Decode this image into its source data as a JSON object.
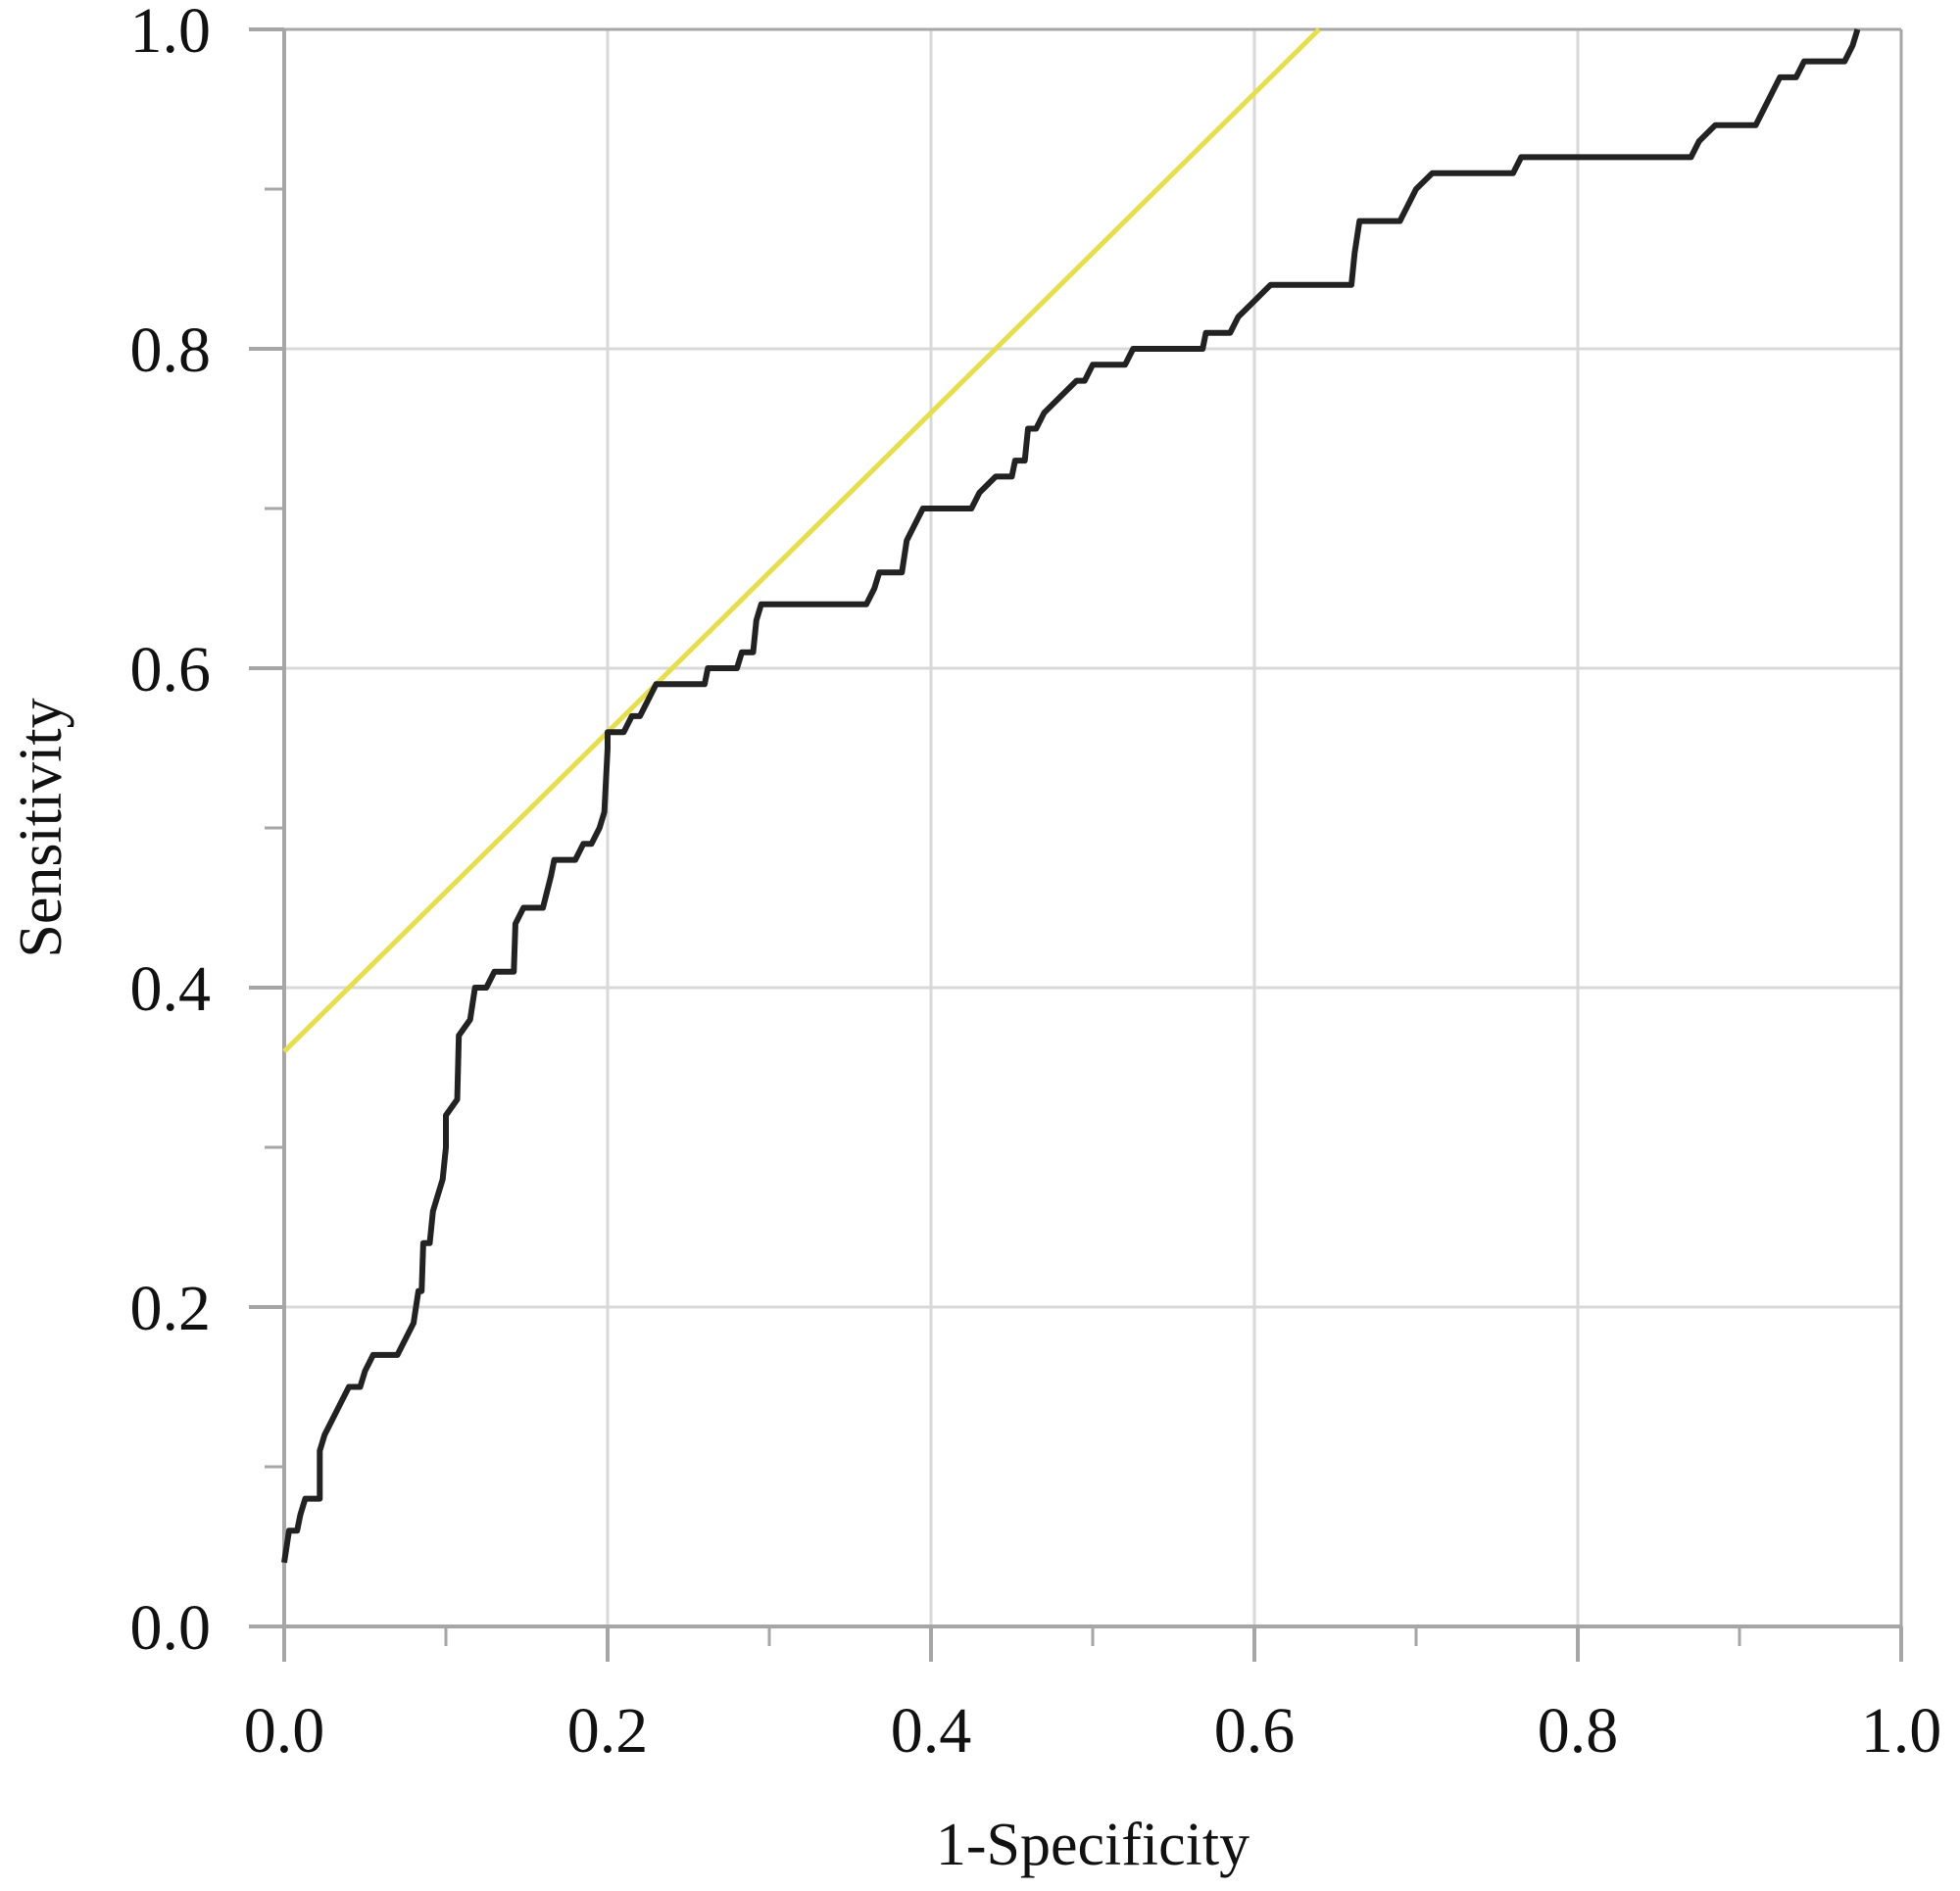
{
  "chart_data": {
    "type": "line",
    "title": "",
    "xlabel": "1-Specificity",
    "ylabel": "Sensitivity",
    "xlim": [
      0,
      1
    ],
    "ylim": [
      0,
      1
    ],
    "x_ticks": [
      "0.0",
      "0.2",
      "0.4",
      "0.6",
      "0.8",
      "1.0"
    ],
    "y_ticks": [
      "0.0",
      "0.2",
      "0.4",
      "0.6",
      "0.8",
      "1.0"
    ],
    "x_tick_values": [
      0,
      0.2,
      0.4,
      0.6,
      0.8,
      1.0
    ],
    "y_tick_values": [
      0,
      0.2,
      0.4,
      0.6,
      0.8,
      1.0
    ],
    "minor_tick_step": 0.1,
    "grid": true,
    "legend": "none",
    "colors": {
      "roc": "#222222",
      "reference": "#e6df4a",
      "grid": "#d9d9d9",
      "axis": "#a6a6a6"
    },
    "series": [
      {
        "kind": "roc-step-curve",
        "points": [
          [
            0.0,
            0.04
          ],
          [
            0.003,
            0.06
          ],
          [
            0.008,
            0.06
          ],
          [
            0.01,
            0.07
          ],
          [
            0.013,
            0.08
          ],
          [
            0.022,
            0.08
          ],
          [
            0.022,
            0.11
          ],
          [
            0.025,
            0.12
          ],
          [
            0.03,
            0.13
          ],
          [
            0.035,
            0.14
          ],
          [
            0.04,
            0.15
          ],
          [
            0.047,
            0.15
          ],
          [
            0.05,
            0.16
          ],
          [
            0.055,
            0.17
          ],
          [
            0.07,
            0.17
          ],
          [
            0.075,
            0.18
          ],
          [
            0.08,
            0.19
          ],
          [
            0.083,
            0.21
          ],
          [
            0.085,
            0.21
          ],
          [
            0.086,
            0.24
          ],
          [
            0.09,
            0.24
          ],
          [
            0.092,
            0.26
          ],
          [
            0.095,
            0.27
          ],
          [
            0.098,
            0.28
          ],
          [
            0.1,
            0.3
          ],
          [
            0.1,
            0.32
          ],
          [
            0.107,
            0.33
          ],
          [
            0.108,
            0.37
          ],
          [
            0.115,
            0.38
          ],
          [
            0.118,
            0.4
          ],
          [
            0.125,
            0.4
          ],
          [
            0.13,
            0.41
          ],
          [
            0.142,
            0.41
          ],
          [
            0.143,
            0.44
          ],
          [
            0.148,
            0.45
          ],
          [
            0.16,
            0.45
          ],
          [
            0.165,
            0.47
          ],
          [
            0.167,
            0.48
          ],
          [
            0.18,
            0.48
          ],
          [
            0.185,
            0.49
          ],
          [
            0.19,
            0.49
          ],
          [
            0.195,
            0.5
          ],
          [
            0.198,
            0.51
          ],
          [
            0.2,
            0.55
          ],
          [
            0.2,
            0.56
          ],
          [
            0.21,
            0.56
          ],
          [
            0.215,
            0.57
          ],
          [
            0.22,
            0.57
          ],
          [
            0.225,
            0.58
          ],
          [
            0.23,
            0.59
          ],
          [
            0.26,
            0.59
          ],
          [
            0.262,
            0.6
          ],
          [
            0.28,
            0.6
          ],
          [
            0.283,
            0.61
          ],
          [
            0.29,
            0.61
          ],
          [
            0.292,
            0.63
          ],
          [
            0.295,
            0.64
          ],
          [
            0.36,
            0.64
          ],
          [
            0.365,
            0.65
          ],
          [
            0.368,
            0.66
          ],
          [
            0.382,
            0.66
          ],
          [
            0.385,
            0.68
          ],
          [
            0.39,
            0.69
          ],
          [
            0.395,
            0.7
          ],
          [
            0.425,
            0.7
          ],
          [
            0.43,
            0.71
          ],
          [
            0.44,
            0.72
          ],
          [
            0.45,
            0.72
          ],
          [
            0.452,
            0.73
          ],
          [
            0.458,
            0.73
          ],
          [
            0.46,
            0.75
          ],
          [
            0.465,
            0.75
          ],
          [
            0.47,
            0.76
          ],
          [
            0.48,
            0.77
          ],
          [
            0.49,
            0.78
          ],
          [
            0.495,
            0.78
          ],
          [
            0.5,
            0.79
          ],
          [
            0.52,
            0.79
          ],
          [
            0.525,
            0.8
          ],
          [
            0.568,
            0.8
          ],
          [
            0.57,
            0.81
          ],
          [
            0.585,
            0.81
          ],
          [
            0.59,
            0.82
          ],
          [
            0.6,
            0.83
          ],
          [
            0.61,
            0.84
          ],
          [
            0.66,
            0.84
          ],
          [
            0.662,
            0.86
          ],
          [
            0.665,
            0.88
          ],
          [
            0.69,
            0.88
          ],
          [
            0.695,
            0.89
          ],
          [
            0.7,
            0.9
          ],
          [
            0.71,
            0.91
          ],
          [
            0.76,
            0.91
          ],
          [
            0.765,
            0.92
          ],
          [
            0.87,
            0.92
          ],
          [
            0.875,
            0.93
          ],
          [
            0.885,
            0.94
          ],
          [
            0.91,
            0.94
          ],
          [
            0.92,
            0.96
          ],
          [
            0.925,
            0.97
          ],
          [
            0.935,
            0.97
          ],
          [
            0.94,
            0.98
          ],
          [
            0.965,
            0.98
          ],
          [
            0.97,
            0.99
          ],
          [
            0.973,
            1.0
          ]
        ]
      },
      {
        "kind": "reference-line",
        "points": [
          [
            0.0,
            0.36
          ],
          [
            0.64,
            1.0
          ]
        ]
      }
    ]
  }
}
